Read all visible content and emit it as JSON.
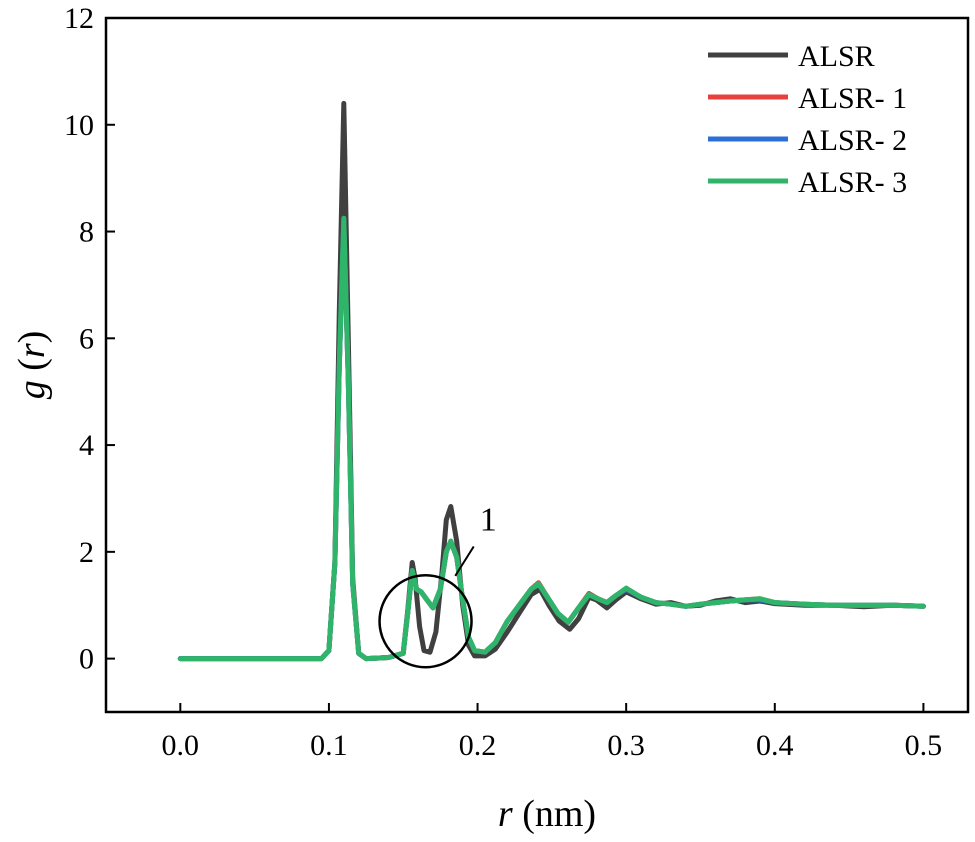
{
  "chart_data": {
    "type": "line",
    "title": "",
    "xlabel_var": "r",
    "xlabel_unit": " (nm)",
    "ylabel_var_g": "g",
    "ylabel_var_r": "r",
    "xlim": [
      -0.05,
      0.53
    ],
    "ylim": [
      -1,
      12
    ],
    "x_ticks": [
      0.0,
      0.1,
      0.2,
      0.3,
      0.4,
      0.5
    ],
    "x_tick_labels": [
      "0.0",
      "0.1",
      "0.2",
      "0.3",
      "0.4",
      "0.5"
    ],
    "y_ticks": [
      0,
      2,
      4,
      6,
      8,
      10,
      12
    ],
    "y_tick_labels": [
      "0",
      "2",
      "4",
      "6",
      "8",
      "10",
      "12"
    ],
    "grid": false,
    "legend_position": "top-right",
    "annotation": {
      "label": "1",
      "circle_center": [
        0.165,
        0.7
      ],
      "line_to": [
        0.188,
        1.95
      ]
    },
    "series": [
      {
        "name": "ALSR",
        "color": "#404040",
        "points": [
          [
            0,
            0
          ],
          [
            0.05,
            0
          ],
          [
            0.095,
            0
          ],
          [
            0.1,
            0.15
          ],
          [
            0.104,
            1.8
          ],
          [
            0.107,
            6.5
          ],
          [
            0.11,
            10.4
          ],
          [
            0.113,
            6.0
          ],
          [
            0.116,
            1.5
          ],
          [
            0.12,
            0.1
          ],
          [
            0.125,
            0
          ],
          [
            0.14,
            0.02
          ],
          [
            0.15,
            0.1
          ],
          [
            0.153,
            0.9
          ],
          [
            0.156,
            1.8
          ],
          [
            0.158,
            1.5
          ],
          [
            0.161,
            0.6
          ],
          [
            0.164,
            0.15
          ],
          [
            0.168,
            0.12
          ],
          [
            0.172,
            0.5
          ],
          [
            0.176,
            1.6
          ],
          [
            0.179,
            2.6
          ],
          [
            0.182,
            2.85
          ],
          [
            0.186,
            2.2
          ],
          [
            0.19,
            1.0
          ],
          [
            0.194,
            0.25
          ],
          [
            0.198,
            0.05
          ],
          [
            0.205,
            0.05
          ],
          [
            0.212,
            0.18
          ],
          [
            0.22,
            0.5
          ],
          [
            0.228,
            0.85
          ],
          [
            0.236,
            1.2
          ],
          [
            0.242,
            1.3
          ],
          [
            0.248,
            1.0
          ],
          [
            0.255,
            0.7
          ],
          [
            0.262,
            0.55
          ],
          [
            0.268,
            0.75
          ],
          [
            0.275,
            1.15
          ],
          [
            0.28,
            1.1
          ],
          [
            0.287,
            0.95
          ],
          [
            0.293,
            1.1
          ],
          [
            0.3,
            1.25
          ],
          [
            0.31,
            1.12
          ],
          [
            0.32,
            1.02
          ],
          [
            0.33,
            1.05
          ],
          [
            0.34,
            0.98
          ],
          [
            0.35,
            1.0
          ],
          [
            0.36,
            1.08
          ],
          [
            0.37,
            1.12
          ],
          [
            0.38,
            1.05
          ],
          [
            0.39,
            1.08
          ],
          [
            0.4,
            1.03
          ],
          [
            0.42,
            1.0
          ],
          [
            0.44,
            1.0
          ],
          [
            0.46,
            0.97
          ],
          [
            0.48,
            1.0
          ],
          [
            0.5,
            0.98
          ]
        ]
      },
      {
        "name": "ALSR- 1",
        "color": "#e8403c",
        "points": [
          [
            0,
            0
          ],
          [
            0.05,
            0
          ],
          [
            0.095,
            0
          ],
          [
            0.1,
            0.15
          ],
          [
            0.104,
            1.8
          ],
          [
            0.107,
            5.5
          ],
          [
            0.11,
            8.15
          ],
          [
            0.113,
            5.2
          ],
          [
            0.116,
            1.4
          ],
          [
            0.12,
            0.1
          ],
          [
            0.125,
            0
          ],
          [
            0.14,
            0.02
          ],
          [
            0.15,
            0.1
          ],
          [
            0.153,
            0.85
          ],
          [
            0.156,
            1.65
          ],
          [
            0.159,
            1.3
          ],
          [
            0.162,
            1.25
          ],
          [
            0.166,
            1.1
          ],
          [
            0.17,
            0.95
          ],
          [
            0.175,
            1.3
          ],
          [
            0.179,
            2.0
          ],
          [
            0.182,
            2.2
          ],
          [
            0.186,
            1.9
          ],
          [
            0.19,
            1.1
          ],
          [
            0.194,
            0.4
          ],
          [
            0.198,
            0.15
          ],
          [
            0.205,
            0.12
          ],
          [
            0.212,
            0.3
          ],
          [
            0.22,
            0.7
          ],
          [
            0.228,
            1.0
          ],
          [
            0.236,
            1.3
          ],
          [
            0.241,
            1.42
          ],
          [
            0.247,
            1.15
          ],
          [
            0.254,
            0.85
          ],
          [
            0.261,
            0.68
          ],
          [
            0.268,
            0.95
          ],
          [
            0.275,
            1.22
          ],
          [
            0.281,
            1.12
          ],
          [
            0.287,
            1.05
          ],
          [
            0.293,
            1.18
          ],
          [
            0.3,
            1.3
          ],
          [
            0.31,
            1.15
          ],
          [
            0.32,
            1.05
          ],
          [
            0.33,
            1.02
          ],
          [
            0.34,
            0.98
          ],
          [
            0.35,
            1.02
          ],
          [
            0.36,
            1.05
          ],
          [
            0.37,
            1.08
          ],
          [
            0.38,
            1.1
          ],
          [
            0.39,
            1.12
          ],
          [
            0.4,
            1.05
          ],
          [
            0.42,
            1.02
          ],
          [
            0.44,
            1.0
          ],
          [
            0.46,
            1.0
          ],
          [
            0.48,
            1.0
          ],
          [
            0.5,
            0.98
          ]
        ]
      },
      {
        "name": "ALSR- 2",
        "color": "#2b6fd6",
        "points": [
          [
            0,
            0
          ],
          [
            0.05,
            0
          ],
          [
            0.095,
            0
          ],
          [
            0.1,
            0.15
          ],
          [
            0.104,
            1.8
          ],
          [
            0.107,
            5.5
          ],
          [
            0.11,
            8.2
          ],
          [
            0.113,
            5.2
          ],
          [
            0.116,
            1.4
          ],
          [
            0.12,
            0.1
          ],
          [
            0.125,
            0
          ],
          [
            0.14,
            0.02
          ],
          [
            0.15,
            0.1
          ],
          [
            0.153,
            0.85
          ],
          [
            0.156,
            1.65
          ],
          [
            0.159,
            1.3
          ],
          [
            0.162,
            1.25
          ],
          [
            0.166,
            1.1
          ],
          [
            0.17,
            0.95
          ],
          [
            0.175,
            1.3
          ],
          [
            0.179,
            2.0
          ],
          [
            0.182,
            2.2
          ],
          [
            0.186,
            1.9
          ],
          [
            0.19,
            1.1
          ],
          [
            0.194,
            0.4
          ],
          [
            0.198,
            0.15
          ],
          [
            0.205,
            0.12
          ],
          [
            0.212,
            0.3
          ],
          [
            0.22,
            0.7
          ],
          [
            0.228,
            1.0
          ],
          [
            0.236,
            1.3
          ],
          [
            0.241,
            1.4
          ],
          [
            0.247,
            1.15
          ],
          [
            0.254,
            0.85
          ],
          [
            0.261,
            0.68
          ],
          [
            0.268,
            0.95
          ],
          [
            0.275,
            1.2
          ],
          [
            0.281,
            1.12
          ],
          [
            0.287,
            1.05
          ],
          [
            0.293,
            1.18
          ],
          [
            0.3,
            1.3
          ],
          [
            0.31,
            1.15
          ],
          [
            0.32,
            1.05
          ],
          [
            0.33,
            1.02
          ],
          [
            0.34,
            0.98
          ],
          [
            0.35,
            1.02
          ],
          [
            0.36,
            1.05
          ],
          [
            0.37,
            1.08
          ],
          [
            0.38,
            1.1
          ],
          [
            0.39,
            1.1
          ],
          [
            0.4,
            1.05
          ],
          [
            0.42,
            1.02
          ],
          [
            0.44,
            1.0
          ],
          [
            0.46,
            1.0
          ],
          [
            0.48,
            1.0
          ],
          [
            0.5,
            0.98
          ]
        ]
      },
      {
        "name": "ALSR- 3",
        "color": "#2fb56a",
        "points": [
          [
            0,
            0
          ],
          [
            0.05,
            0
          ],
          [
            0.095,
            0
          ],
          [
            0.1,
            0.15
          ],
          [
            0.104,
            1.8
          ],
          [
            0.107,
            5.5
          ],
          [
            0.11,
            8.25
          ],
          [
            0.113,
            5.2
          ],
          [
            0.116,
            1.4
          ],
          [
            0.12,
            0.1
          ],
          [
            0.125,
            0
          ],
          [
            0.14,
            0.02
          ],
          [
            0.15,
            0.1
          ],
          [
            0.153,
            0.85
          ],
          [
            0.156,
            1.65
          ],
          [
            0.159,
            1.3
          ],
          [
            0.162,
            1.25
          ],
          [
            0.166,
            1.1
          ],
          [
            0.17,
            0.95
          ],
          [
            0.175,
            1.3
          ],
          [
            0.179,
            2.0
          ],
          [
            0.182,
            2.2
          ],
          [
            0.186,
            1.9
          ],
          [
            0.19,
            1.1
          ],
          [
            0.194,
            0.4
          ],
          [
            0.198,
            0.15
          ],
          [
            0.205,
            0.12
          ],
          [
            0.212,
            0.3
          ],
          [
            0.22,
            0.7
          ],
          [
            0.228,
            1.0
          ],
          [
            0.236,
            1.3
          ],
          [
            0.241,
            1.4
          ],
          [
            0.247,
            1.15
          ],
          [
            0.254,
            0.85
          ],
          [
            0.261,
            0.68
          ],
          [
            0.268,
            0.95
          ],
          [
            0.275,
            1.2
          ],
          [
            0.281,
            1.12
          ],
          [
            0.287,
            1.05
          ],
          [
            0.293,
            1.18
          ],
          [
            0.3,
            1.32
          ],
          [
            0.31,
            1.15
          ],
          [
            0.32,
            1.05
          ],
          [
            0.33,
            1.02
          ],
          [
            0.34,
            0.98
          ],
          [
            0.35,
            1.02
          ],
          [
            0.36,
            1.05
          ],
          [
            0.37,
            1.08
          ],
          [
            0.38,
            1.1
          ],
          [
            0.39,
            1.12
          ],
          [
            0.4,
            1.05
          ],
          [
            0.42,
            1.02
          ],
          [
            0.44,
            1.0
          ],
          [
            0.46,
            1.0
          ],
          [
            0.48,
            1.0
          ],
          [
            0.5,
            0.98
          ]
        ]
      }
    ]
  }
}
